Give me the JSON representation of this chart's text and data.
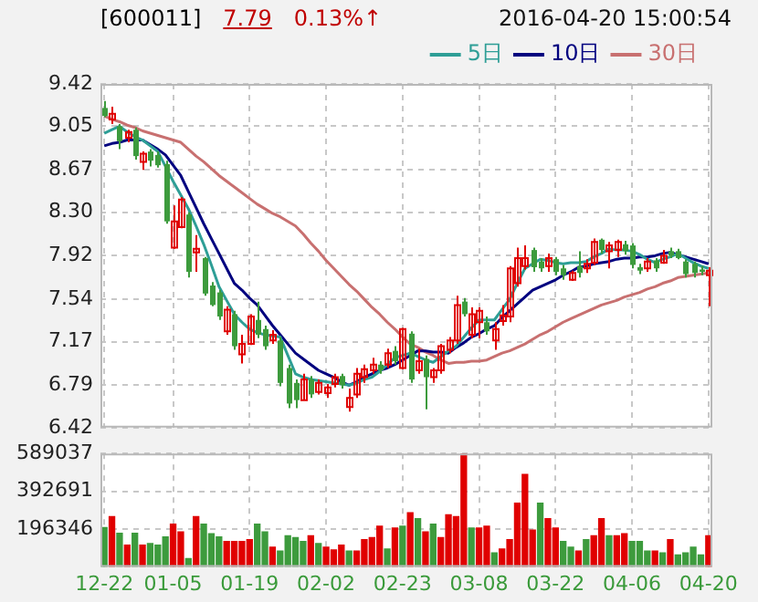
{
  "chart_data": [
    {
      "type": "candlestick",
      "title": "[600011]",
      "annotations": [
        "7.79",
        "0.13%↑",
        "2016-04-20 15:00:54"
      ],
      "categories": [
        null,
        null,
        null,
        null,
        null,
        null,
        null,
        null,
        null,
        null,
        null,
        null,
        null,
        null,
        null,
        null,
        null,
        null,
        null,
        null,
        null,
        null,
        null,
        null,
        null,
        null,
        null,
        null,
        null,
        null,
        null,
        null,
        null,
        null,
        null,
        null,
        null,
        null,
        null,
        null,
        null,
        null,
        null,
        null,
        null,
        null,
        null,
        null,
        null,
        null,
        null,
        null,
        null,
        null,
        null,
        null,
        null,
        null,
        null,
        null,
        null,
        null,
        null,
        null,
        null,
        null,
        null,
        null,
        null,
        null,
        null,
        null,
        null,
        null,
        null,
        null,
        null,
        null,
        null,
        null
      ],
      "ohlc": [
        [
          9.21,
          9.27,
          9.13,
          9.14
        ],
        [
          9.11,
          9.22,
          9.07,
          9.16
        ],
        [
          9.05,
          9.07,
          8.85,
          8.92
        ],
        [
          8.95,
          9.02,
          8.91,
          9.0
        ],
        [
          9.02,
          9.04,
          8.76,
          8.79
        ],
        [
          8.74,
          8.83,
          8.67,
          8.81
        ],
        [
          8.83,
          8.85,
          8.7,
          8.75
        ],
        [
          8.8,
          8.83,
          8.69,
          8.71
        ],
        [
          8.72,
          8.75,
          8.2,
          8.22
        ],
        [
          7.99,
          8.36,
          7.98,
          8.22
        ],
        [
          8.17,
          8.43,
          8.16,
          8.41
        ],
        [
          8.28,
          8.3,
          7.73,
          7.78
        ],
        [
          7.95,
          8.1,
          7.78,
          7.98
        ],
        [
          7.9,
          7.91,
          7.57,
          7.59
        ],
        [
          7.66,
          7.69,
          7.48,
          7.49
        ],
        [
          7.6,
          7.62,
          7.36,
          7.39
        ],
        [
          7.26,
          7.48,
          7.23,
          7.45
        ],
        [
          7.41,
          7.44,
          7.1,
          7.13
        ],
        [
          7.06,
          7.23,
          6.98,
          7.15
        ],
        [
          7.15,
          7.41,
          7.14,
          7.39
        ],
        [
          7.36,
          7.52,
          7.2,
          7.23
        ],
        [
          7.28,
          7.31,
          7.1,
          7.13
        ],
        [
          7.18,
          7.27,
          7.15,
          7.23
        ],
        [
          7.18,
          7.21,
          6.78,
          6.81
        ],
        [
          6.94,
          6.97,
          6.59,
          6.63
        ],
        [
          6.81,
          6.84,
          6.59,
          6.66
        ],
        [
          6.66,
          6.89,
          6.66,
          6.84
        ],
        [
          6.84,
          6.87,
          6.68,
          6.71
        ],
        [
          6.73,
          6.84,
          6.71,
          6.81
        ],
        [
          6.72,
          6.8,
          6.68,
          6.77
        ],
        [
          6.8,
          6.89,
          6.77,
          6.86
        ],
        [
          6.87,
          6.89,
          6.76,
          6.79
        ],
        [
          6.6,
          6.76,
          6.56,
          6.68
        ],
        [
          6.71,
          6.94,
          6.68,
          6.89
        ],
        [
          6.86,
          6.97,
          6.81,
          6.93
        ],
        [
          6.92,
          7.03,
          6.89,
          6.97
        ],
        [
          6.97,
          7.0,
          6.89,
          6.92
        ],
        [
          6.97,
          7.11,
          6.94,
          7.07
        ],
        [
          7.09,
          7.13,
          6.97,
          7.0
        ],
        [
          6.94,
          7.29,
          6.93,
          7.28
        ],
        [
          7.24,
          7.26,
          6.81,
          6.84
        ],
        [
          6.92,
          7.11,
          6.89,
          7.0
        ],
        [
          7.02,
          7.05,
          6.58,
          6.86
        ],
        [
          6.86,
          6.94,
          6.81,
          6.92
        ],
        [
          6.92,
          7.15,
          6.89,
          7.13
        ],
        [
          7.1,
          7.21,
          7.07,
          7.18
        ],
        [
          7.18,
          7.57,
          7.15,
          7.49
        ],
        [
          7.52,
          7.55,
          7.39,
          7.41
        ],
        [
          7.23,
          7.47,
          7.2,
          7.41
        ],
        [
          7.34,
          7.47,
          7.2,
          7.44
        ],
        [
          7.34,
          7.39,
          7.23,
          7.26
        ],
        [
          7.18,
          7.34,
          7.1,
          7.28
        ],
        [
          7.35,
          7.49,
          7.31,
          7.4
        ],
        [
          7.39,
          7.83,
          7.34,
          7.81
        ],
        [
          7.68,
          7.99,
          7.65,
          7.9
        ],
        [
          7.83,
          8.01,
          7.8,
          7.9
        ],
        [
          7.97,
          7.99,
          7.78,
          7.82
        ],
        [
          7.87,
          7.9,
          7.78,
          7.81
        ],
        [
          7.83,
          7.94,
          7.78,
          7.9
        ],
        [
          7.89,
          7.91,
          7.75,
          7.78
        ],
        [
          7.81,
          7.84,
          7.71,
          7.75
        ],
        [
          7.71,
          7.79,
          7.7,
          7.77
        ],
        [
          7.83,
          7.96,
          7.73,
          7.77
        ],
        [
          7.81,
          7.89,
          7.77,
          7.85
        ],
        [
          7.86,
          8.07,
          7.84,
          8.04
        ],
        [
          8.06,
          8.07,
          7.94,
          7.97
        ],
        [
          7.96,
          8.04,
          7.81,
          8.01
        ],
        [
          7.97,
          8.06,
          7.91,
          8.04
        ],
        [
          8.02,
          8.05,
          7.93,
          7.96
        ],
        [
          8.01,
          8.03,
          7.81,
          7.84
        ],
        [
          7.82,
          7.85,
          7.76,
          7.79
        ],
        [
          7.81,
          7.9,
          7.78,
          7.87
        ],
        [
          7.88,
          7.9,
          7.78,
          7.81
        ],
        [
          7.86,
          7.97,
          7.85,
          7.92
        ],
        [
          7.96,
          7.99,
          7.9,
          7.92
        ],
        [
          7.96,
          7.98,
          7.89,
          7.9
        ],
        [
          7.87,
          7.89,
          7.73,
          7.76
        ],
        [
          7.85,
          7.87,
          7.73,
          7.77
        ],
        [
          7.8,
          7.83,
          7.75,
          7.78
        ],
        [
          7.75,
          7.82,
          7.48,
          7.79
        ]
      ],
      "colors": [
        "#3d9b3d",
        "#e00000",
        "#3d9b3d",
        "#e00000",
        "#3d9b3d",
        "#e00000",
        "#3d9b3d",
        "#3d9b3d",
        "#3d9b3d",
        "#e00000",
        "#e00000",
        "#3d9b3d",
        "#e00000",
        "#3d9b3d",
        "#3d9b3d",
        "#3d9b3d",
        "#e00000",
        "#3d9b3d",
        "#e00000",
        "#e00000",
        "#3d9b3d",
        "#3d9b3d",
        "#e00000",
        "#3d9b3d",
        "#3d9b3d",
        "#3d9b3d",
        "#e00000",
        "#3d9b3d",
        "#e00000",
        "#e00000",
        "#e00000",
        "#3d9b3d",
        "#e00000",
        "#e00000",
        "#e00000",
        "#e00000",
        "#3d9b3d",
        "#e00000",
        "#3d9b3d",
        "#e00000",
        "#3d9b3d",
        "#e00000",
        "#3d9b3d",
        "#e00000",
        "#e00000",
        "#e00000",
        "#e00000",
        "#3d9b3d",
        "#e00000",
        "#e00000",
        "#3d9b3d",
        "#e00000",
        "#e00000",
        "#e00000",
        "#e00000",
        "#e00000",
        "#3d9b3d",
        "#3d9b3d",
        "#e00000",
        "#3d9b3d",
        "#3d9b3d",
        "#e00000",
        "#3d9b3d",
        "#e00000",
        "#e00000",
        "#3d9b3d",
        "#e00000",
        "#e00000",
        "#3d9b3d",
        "#3d9b3d",
        "#3d9b3d",
        "#e00000",
        "#3d9b3d",
        "#e00000",
        "#3d9b3d",
        "#3d9b3d",
        "#3d9b3d",
        "#3d9b3d",
        "#3d9b3d",
        "#e00000"
      ],
      "series": [
        {
          "name": "5日",
          "type": "line",
          "color": "#2e9e96",
          "values": [
            8.99,
            9.02,
            9.05,
            9.0,
            8.96,
            8.93,
            8.88,
            8.83,
            8.7,
            8.57,
            8.45,
            8.33,
            8.18,
            8.02,
            7.84,
            7.65,
            7.53,
            7.41,
            7.34,
            7.28,
            7.25,
            7.23,
            7.22,
            7.21,
            7.05,
            6.89,
            6.86,
            6.84,
            6.83,
            6.82,
            6.81,
            6.8,
            6.79,
            6.81,
            6.84,
            6.86,
            6.91,
            6.97,
            7.03,
            7.05,
            7.07,
            7.04,
            7.01,
            6.99,
            7.04,
            7.09,
            7.13,
            7.21,
            7.29,
            7.36,
            7.36,
            7.36,
            7.45,
            7.54,
            7.68,
            7.81,
            7.85,
            7.89,
            7.88,
            7.86,
            7.85,
            7.86,
            7.86,
            7.87,
            7.91,
            7.94,
            7.98,
            7.97,
            7.97,
            7.96,
            7.93,
            7.89,
            7.86,
            7.89,
            7.91,
            7.94,
            7.9,
            7.86,
            7.83,
            7.81
          ]
        },
        {
          "name": "10日",
          "type": "line",
          "color": "#00007f",
          "values": [
            8.88,
            8.9,
            8.91,
            8.93,
            8.93,
            8.93,
            8.89,
            8.85,
            8.8,
            8.71,
            8.62,
            8.48,
            8.34,
            8.2,
            8.07,
            7.94,
            7.81,
            7.68,
            7.62,
            7.55,
            7.49,
            7.4,
            7.31,
            7.23,
            7.15,
            7.07,
            7.02,
            6.97,
            6.92,
            6.89,
            6.86,
            6.82,
            6.79,
            6.82,
            6.86,
            6.89,
            6.92,
            6.94,
            6.97,
            7.01,
            7.05,
            7.09,
            7.09,
            7.08,
            7.08,
            7.07,
            7.12,
            7.16,
            7.21,
            7.24,
            7.28,
            7.31,
            7.38,
            7.44,
            7.5,
            7.56,
            7.62,
            7.65,
            7.68,
            7.71,
            7.75,
            7.78,
            7.82,
            7.83,
            7.85,
            7.86,
            7.87,
            7.89,
            7.9,
            7.9,
            7.91,
            7.91,
            7.92,
            7.94,
            7.95,
            7.93,
            7.91,
            7.89,
            7.87,
            7.85
          ]
        },
        {
          "name": "30日",
          "type": "line",
          "color": "#c87070",
          "values": [
            9.14,
            9.11,
            9.09,
            9.06,
            9.04,
            9.01,
            8.99,
            8.97,
            8.95,
            8.93,
            8.91,
            8.85,
            8.79,
            8.74,
            8.68,
            8.62,
            8.57,
            8.52,
            8.47,
            8.42,
            8.37,
            8.33,
            8.29,
            8.26,
            8.22,
            8.18,
            8.11,
            8.03,
            7.96,
            7.88,
            7.81,
            7.74,
            7.67,
            7.61,
            7.54,
            7.47,
            7.41,
            7.34,
            7.28,
            7.21,
            7.15,
            7.12,
            7.08,
            7.05,
            7.01,
            6.98,
            6.99,
            6.99,
            7.0,
            7.0,
            7.01,
            7.04,
            7.07,
            7.09,
            7.12,
            7.15,
            7.19,
            7.23,
            7.26,
            7.3,
            7.34,
            7.37,
            7.4,
            7.43,
            7.46,
            7.49,
            7.51,
            7.53,
            7.56,
            7.58,
            7.6,
            7.63,
            7.65,
            7.68,
            7.7,
            7.73,
            7.74,
            7.75,
            7.76,
            7.77
          ]
        }
      ],
      "ylim": [
        6.42,
        9.42
      ],
      "yticks": [
        {
          "value": 6.42,
          "label": "6.42"
        },
        6.79,
        7.17,
        7.54,
        7.92,
        {
          "value": 8.3,
          "label": "8.30"
        },
        8.67,
        9.05,
        9.42
      ],
      "grid": true,
      "legend": "top right",
      "tick_labels": "y"
    },
    {
      "type": "bar",
      "categories": [
        "12-22",
        null,
        null,
        null,
        null,
        null,
        null,
        null,
        null,
        "01-05",
        null,
        null,
        null,
        null,
        null,
        null,
        null,
        null,
        null,
        "01-19",
        null,
        null,
        null,
        null,
        null,
        null,
        null,
        null,
        null,
        "02-02",
        null,
        null,
        null,
        null,
        null,
        null,
        null,
        null,
        null,
        "02-23",
        null,
        null,
        null,
        null,
        null,
        null,
        null,
        null,
        null,
        "03-08",
        null,
        null,
        null,
        null,
        null,
        null,
        null,
        null,
        null,
        "03-22",
        null,
        null,
        null,
        null,
        null,
        null,
        null,
        null,
        null,
        "04-06",
        null,
        null,
        null,
        null,
        null,
        null,
        null,
        null,
        null,
        "04-20"
      ],
      "values": [
        205000,
        261000,
        175000,
        113000,
        175000,
        113000,
        122000,
        113000,
        156000,
        222000,
        182000,
        43000,
        261000,
        222000,
        172000,
        156000,
        132000,
        132000,
        132000,
        142000,
        222000,
        182000,
        103000,
        83000,
        162000,
        152000,
        132000,
        162000,
        122000,
        103000,
        89000,
        113000,
        83000,
        83000,
        142000,
        152000,
        212000,
        93000,
        202000,
        212000,
        281000,
        251000,
        182000,
        222000,
        152000,
        271000,
        261000,
        589037,
        202000,
        202000,
        212000,
        73000,
        93000,
        142000,
        331000,
        480000,
        192000,
        331000,
        251000,
        202000,
        132000,
        103000,
        83000,
        142000,
        162000,
        251000,
        162000,
        162000,
        172000,
        132000,
        132000,
        83000,
        83000,
        73000,
        142000,
        63000,
        73000,
        103000,
        63000,
        162000
      ],
      "colors": [
        "#3d9b3d",
        "#e00000",
        "#3d9b3d",
        "#e00000",
        "#3d9b3d",
        "#e00000",
        "#3d9b3d",
        "#3d9b3d",
        "#3d9b3d",
        "#e00000",
        "#e00000",
        "#3d9b3d",
        "#e00000",
        "#3d9b3d",
        "#3d9b3d",
        "#3d9b3d",
        "#e00000",
        "#e00000",
        "#e00000",
        "#e00000",
        "#3d9b3d",
        "#3d9b3d",
        "#e00000",
        "#3d9b3d",
        "#3d9b3d",
        "#3d9b3d",
        "#3d9b3d",
        "#e00000",
        "#3d9b3d",
        "#e00000",
        "#e00000",
        "#e00000",
        "#3d9b3d",
        "#e00000",
        "#e00000",
        "#e00000",
        "#e00000",
        "#3d9b3d",
        "#e00000",
        "#3d9b3d",
        "#e00000",
        "#3d9b3d",
        "#e00000",
        "#3d9b3d",
        "#e00000",
        "#e00000",
        "#e00000",
        "#e00000",
        "#3d9b3d",
        "#e00000",
        "#e00000",
        "#3d9b3d",
        "#e00000",
        "#e00000",
        "#e00000",
        "#e00000",
        "#e00000",
        "#3d9b3d",
        "#e00000",
        "#e00000",
        "#3d9b3d",
        "#3d9b3d",
        "#e00000",
        "#3d9b3d",
        "#e00000",
        "#e00000",
        "#3d9b3d",
        "#e00000",
        "#e00000",
        "#3d9b3d",
        "#3d9b3d",
        "#3d9b3d",
        "#e00000",
        "#3d9b3d",
        "#e00000",
        "#3d9b3d",
        "#3d9b3d",
        "#3d9b3d",
        "#3d9b3d",
        "#e00000"
      ],
      "ylim": [
        0,
        589037
      ],
      "yticks": [
        196346,
        392691,
        589037
      ],
      "grid": true
    }
  ]
}
